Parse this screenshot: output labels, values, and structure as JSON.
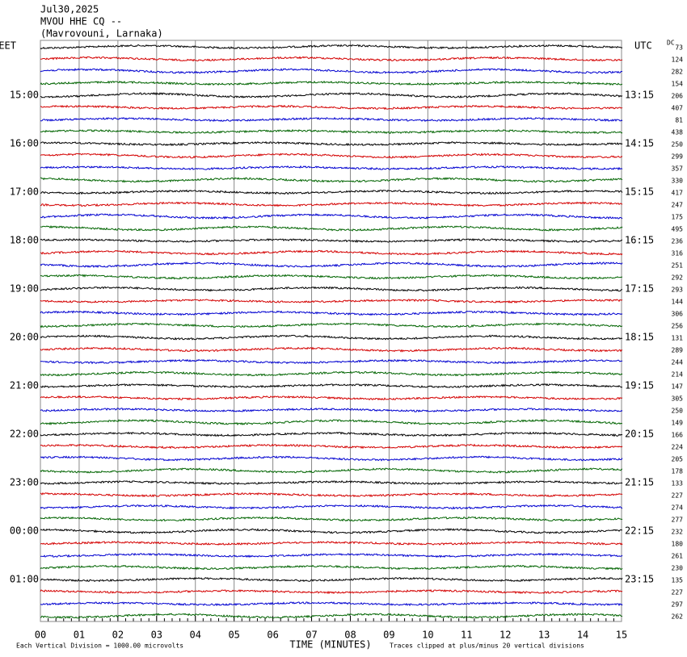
{
  "chart_data": {
    "type": "helicorder",
    "title_lines": [
      "Jul30,2025",
      "MVOU HHE CQ --",
      "(Mavrovouni, Larnaka)"
    ],
    "left_header": "EET",
    "right_header": "UTC",
    "dc_header": "DC",
    "left_labels": [
      "15:00",
      "16:00",
      "17:00",
      "18:00",
      "19:00",
      "20:00",
      "21:00",
      "22:00",
      "23:00",
      "00:00",
      "01:00"
    ],
    "right_labels": [
      "13:15",
      "14:15",
      "15:15",
      "16:15",
      "17:15",
      "18:15",
      "19:15",
      "20:15",
      "21:15",
      "22:15",
      "23:15"
    ],
    "dc_values": [
      73,
      124,
      282,
      154,
      206,
      407,
      81,
      438,
      250,
      299,
      357,
      330,
      417,
      247,
      175,
      495,
      236,
      316,
      251,
      292,
      293,
      144,
      306,
      256,
      131,
      289,
      244,
      214,
      147,
      305,
      250,
      149,
      166,
      224,
      205,
      178,
      133,
      227,
      274,
      277,
      232,
      180,
      261,
      230,
      135,
      227,
      297,
      262
    ],
    "trace_colors": [
      "#000000",
      "#d40000",
      "#0000d0",
      "#006400"
    ],
    "x_label": "TIME (MINUTES)",
    "xlim": [
      0,
      15
    ],
    "xticks": [
      {
        "value": 0,
        "label": "00"
      },
      {
        "value": 1,
        "label": "01"
      },
      {
        "value": 2,
        "label": "02"
      },
      {
        "value": 3,
        "label": "03"
      },
      {
        "value": 4,
        "label": "04"
      },
      {
        "value": 5,
        "label": "05"
      },
      {
        "value": 6,
        "label": "06"
      },
      {
        "value": 7,
        "label": "07"
      },
      {
        "value": 8,
        "label": "08"
      },
      {
        "value": 9,
        "label": "09"
      },
      10,
      11,
      12,
      13,
      14,
      15
    ],
    "scale_note": "Each Vertical Division = 1000.00 microvolts",
    "clip_note": "Traces clipped at plus/minus 20 vertical divisions"
  }
}
